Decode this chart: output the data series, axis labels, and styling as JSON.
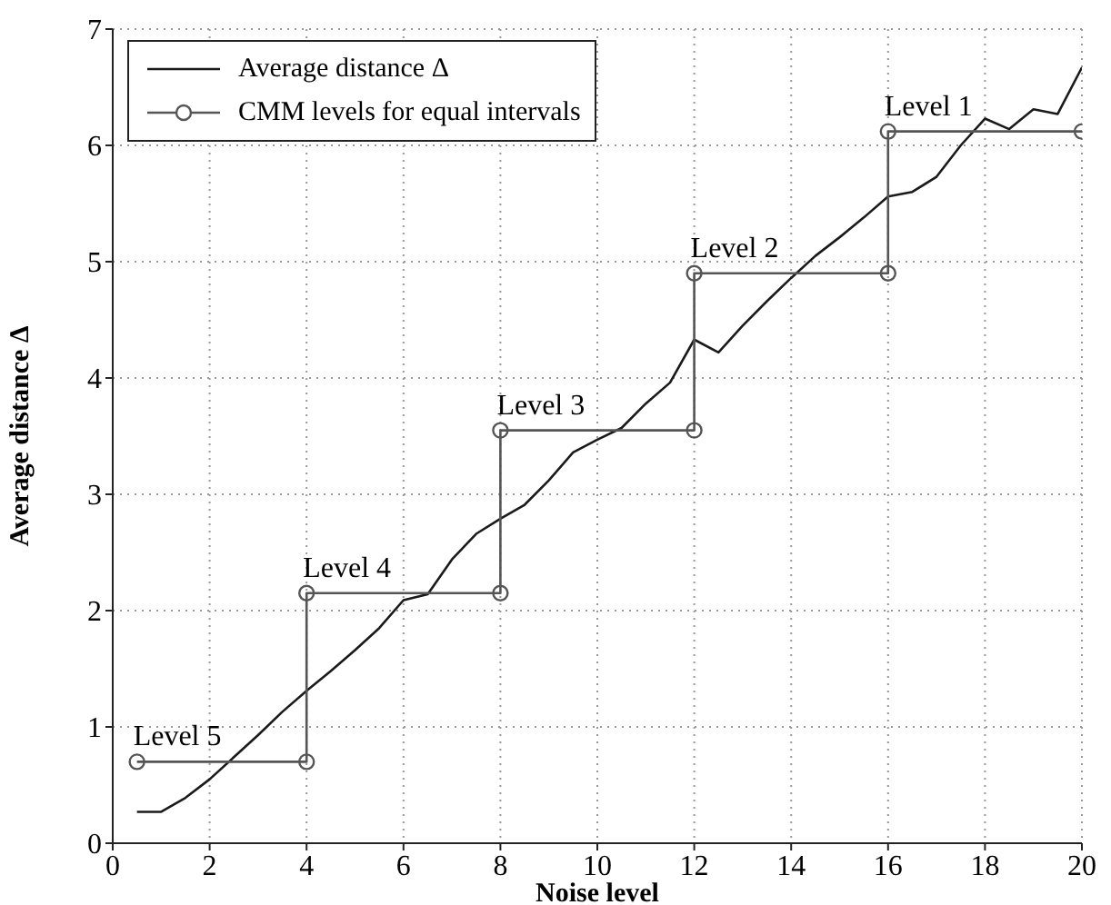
{
  "chart_data": {
    "type": "line",
    "xlabel": "Noise level",
    "ylabel": "Average distance Δ",
    "xlim": [
      0,
      20
    ],
    "xticks": [
      0,
      2,
      4,
      6,
      8,
      10,
      12,
      14,
      16,
      18,
      20
    ],
    "ylim": [
      0,
      7
    ],
    "yticks": [
      0,
      1,
      2,
      3,
      4,
      5,
      6,
      7
    ],
    "grid": true,
    "legend": "top left",
    "line_style": "solid",
    "series": [
      {
        "name": "Average distance Δ",
        "color": "#1a1a1a",
        "marker": "none",
        "x": [
          0.5,
          1,
          1.5,
          2,
          2.5,
          3,
          3.5,
          4,
          4.5,
          5,
          5.5,
          6,
          6.5,
          7,
          7.5,
          8,
          8.5,
          9,
          9.5,
          10,
          10.5,
          11,
          11.5,
          12,
          12.5,
          13,
          13.5,
          14,
          14.5,
          15,
          15.5,
          16,
          16.5,
          17,
          17.5,
          18,
          18.5,
          19,
          19.5,
          20
        ],
        "values": [
          0.27,
          0.27,
          0.39,
          0.55,
          0.74,
          0.93,
          1.13,
          1.31,
          1.48,
          1.66,
          1.85,
          2.09,
          2.14,
          2.44,
          2.66,
          2.79,
          2.91,
          3.12,
          3.36,
          3.47,
          3.57,
          3.78,
          3.96,
          4.33,
          4.22,
          4.45,
          4.66,
          4.86,
          5.05,
          5.21,
          5.38,
          5.56,
          5.6,
          5.73,
          6.0,
          6.23,
          6.14,
          6.31,
          6.27,
          6.67
        ]
      },
      {
        "name": "CMM levels for equal intervals",
        "color": "#555555",
        "marker": "circle",
        "x": [
          0.5,
          4,
          4,
          8,
          8,
          12,
          12,
          16,
          16,
          20
        ],
        "values": [
          0.7,
          0.7,
          2.15,
          2.15,
          3.55,
          3.55,
          4.9,
          4.9,
          6.12,
          6.12
        ]
      }
    ],
    "annotations": [
      {
        "text": "Level 5",
        "x": 0.5,
        "y": 0.7
      },
      {
        "text": "Level 4",
        "x": 4,
        "y": 2.15
      },
      {
        "text": "Level 3",
        "x": 8,
        "y": 3.55
      },
      {
        "text": "Level 2",
        "x": 12,
        "y": 4.9
      },
      {
        "text": "Level 1",
        "x": 16,
        "y": 6.12
      }
    ]
  }
}
